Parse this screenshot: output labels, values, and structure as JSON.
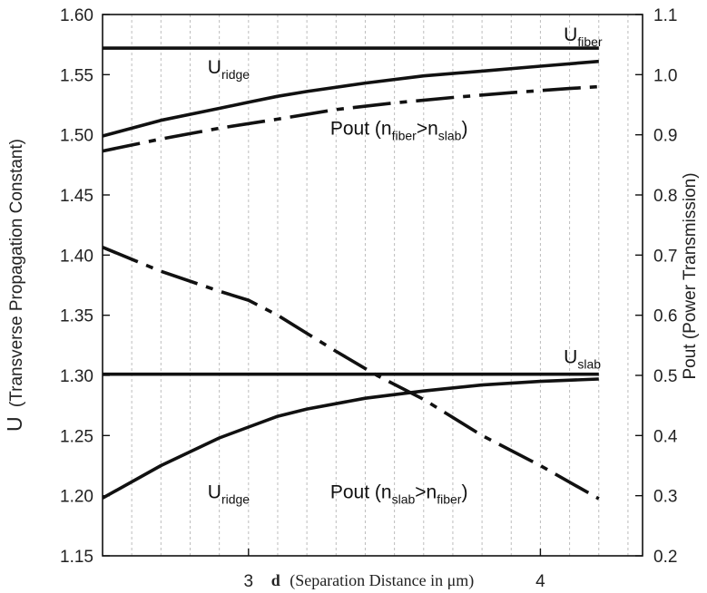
{
  "chart_data": {
    "type": "line",
    "title": "",
    "xlabel_bold": "d",
    "xlabel": "(Separation Distance in μm)",
    "ylabel_left_main": "U",
    "ylabel_left_rest": "(Transverse Propagation Constant)",
    "ylabel_right": "Pout (Power Transmission)",
    "xlim": [
      2.5,
      4.35
    ],
    "ylim_left": [
      1.15,
      1.6
    ],
    "ylim_right": [
      0.2,
      1.1
    ],
    "x_ticks": [
      3,
      4
    ],
    "x_tick_labels": [
      "3",
      "4"
    ],
    "y_left_ticks": [
      1.15,
      1.2,
      1.25,
      1.3,
      1.35,
      1.4,
      1.45,
      1.5,
      1.55,
      1.6
    ],
    "y_left_tick_labels": [
      "1.15",
      "1.20",
      "1.25",
      "1.30",
      "1.35",
      "1.40",
      "1.45",
      "1.50",
      "1.55",
      "1.60"
    ],
    "y_right_ticks": [
      0.2,
      0.3,
      0.4,
      0.5,
      0.6,
      0.7,
      0.8,
      0.9,
      1.0,
      1.1
    ],
    "y_right_tick_labels": [
      "0.2",
      "0.3",
      "0.4",
      "0.5",
      "0.6",
      "0.7",
      "0.8",
      "0.9",
      "1.0",
      "1.1"
    ],
    "grid": true,
    "series": [
      {
        "axis": "left",
        "style": "solid",
        "x": [
          2.5,
          4.2
        ],
        "y": [
          1.572,
          1.572
        ]
      },
      {
        "axis": "left",
        "style": "solid",
        "x": [
          2.5,
          4.2
        ],
        "y": [
          1.301,
          1.301
        ]
      },
      {
        "axis": "left",
        "style": "solid",
        "x": [
          2.5,
          2.7,
          2.9,
          3.0,
          3.1,
          3.2,
          3.4,
          3.6,
          3.8,
          4.0,
          4.2
        ],
        "y": [
          1.499,
          1.512,
          1.522,
          1.527,
          1.532,
          1.536,
          1.543,
          1.549,
          1.553,
          1.557,
          1.561
        ]
      },
      {
        "axis": "left",
        "style": "solid",
        "x": [
          2.5,
          2.7,
          2.9,
          3.0,
          3.1,
          3.2,
          3.4,
          3.6,
          3.8,
          4.0,
          4.2
        ],
        "y": [
          1.198,
          1.225,
          1.248,
          1.257,
          1.266,
          1.272,
          1.281,
          1.287,
          1.292,
          1.295,
          1.297
        ]
      },
      {
        "axis": "right",
        "style": "dashdot",
        "x": [
          2.5,
          2.7,
          2.9,
          3.1,
          3.3,
          3.5,
          3.7,
          3.9,
          4.1,
          4.2
        ],
        "y": [
          0.873,
          0.893,
          0.911,
          0.926,
          0.942,
          0.953,
          0.962,
          0.97,
          0.977,
          0.98
        ]
      },
      {
        "axis": "right",
        "style": "dashdot",
        "x": [
          2.5,
          2.7,
          2.9,
          3.0,
          3.1,
          3.2,
          3.3,
          3.44,
          3.6,
          3.8,
          4.0,
          4.2
        ],
        "y": [
          0.713,
          0.673,
          0.64,
          0.625,
          0.6,
          0.57,
          0.54,
          0.5,
          0.46,
          0.4,
          0.35,
          0.295
        ]
      }
    ],
    "annotations": [
      {
        "main": "U",
        "sub": "fiber",
        "x": 4.08,
        "y_left": 1.578
      },
      {
        "main": "U",
        "sub": "ridge",
        "x": 2.86,
        "y_left": 1.551
      },
      {
        "main": "Pout (n",
        "sub": "fiber",
        "mid": ">n",
        "sub2": "slab",
        "end": ")",
        "x": 3.28,
        "y_left": 1.5
      },
      {
        "main": "U",
        "sub": "slab",
        "x": 4.08,
        "y_left": 1.31
      },
      {
        "main": "U",
        "sub": "ridge",
        "x": 2.86,
        "y_left": 1.198
      },
      {
        "main": "Pout (n",
        "sub": "slab",
        "mid": ">n",
        "sub2": "fiber",
        "end": ")",
        "x": 3.28,
        "y_left": 1.198
      }
    ]
  }
}
